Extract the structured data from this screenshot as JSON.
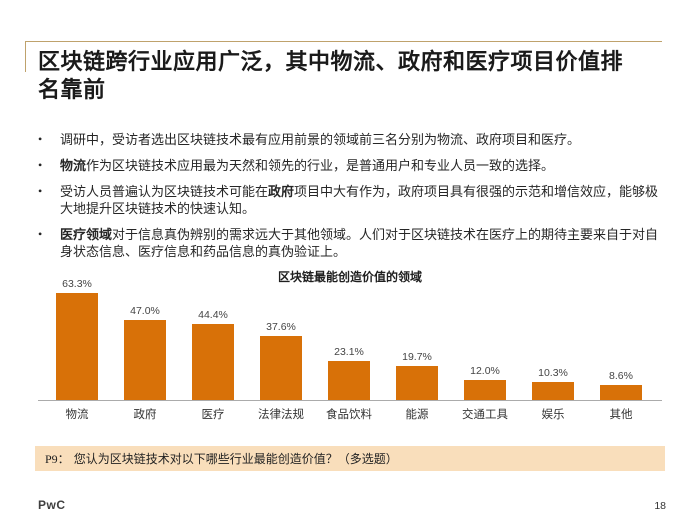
{
  "slide": {
    "title": "区块链跨行业应用广泛，其中物流、政府和医疗项目价值排\n名靠前",
    "bullet_char": "•",
    "bullets": [
      {
        "pre": "调研中，受访者选出区块链技术最有应用前景的领域前三名分别为物流、政府项目和医疗。",
        "bold": "",
        "post": ""
      },
      {
        "pre": "",
        "bold": "物流",
        "post": "作为区块链技术应用最为天然和领先的行业，是普通用户和专业人员一致的选择。"
      },
      {
        "pre": "受访人员普遍认为区块链技术可能在",
        "bold": "政府",
        "post": "项目中大有作为，政府项目具有很强的示范和增信效应，能够极大地提升区块链技术的快速认知。"
      },
      {
        "pre": "",
        "bold": "医疗领域",
        "post": "对于信息真伪辨别的需求远大于其他领域。人们对于区块链技术在医疗上的期待主要来自于对自身状态信息、医疗信息和药品信息的真伪验证上。"
      }
    ],
    "question_prefix": "P9：",
    "question_text": "您认为区块链技术对以下哪些行业最能创造价值？（多选题）",
    "logo": "PwC",
    "page_number": "18"
  },
  "chart_data": {
    "type": "bar",
    "title": "区块链最能创造价值的领域",
    "categories": [
      "物流",
      "政府",
      "医疗",
      "法律法规",
      "食品饮料",
      "能源",
      "交通工具",
      "娱乐",
      "其他"
    ],
    "values": [
      63.3,
      47.0,
      44.4,
      37.6,
      23.1,
      19.7,
      12.0,
      10.3,
      8.6
    ],
    "labels": [
      "63.3%",
      "47.0%",
      "44.4%",
      "37.6%",
      "23.1%",
      "19.7%",
      "12.0%",
      "10.3%",
      "8.6%"
    ],
    "xlabel": "",
    "ylabel": "",
    "ylim": [
      0,
      70
    ],
    "grid": false,
    "legend": "none",
    "bar_color": "#D87108"
  },
  "colors": {
    "accent_line": "#BFA26C",
    "bar_orange": "#D87108",
    "question_bar_bg": "#F9DEBB",
    "axis_gray": "#ABABAB",
    "text_dark": "#1A1A1A"
  }
}
